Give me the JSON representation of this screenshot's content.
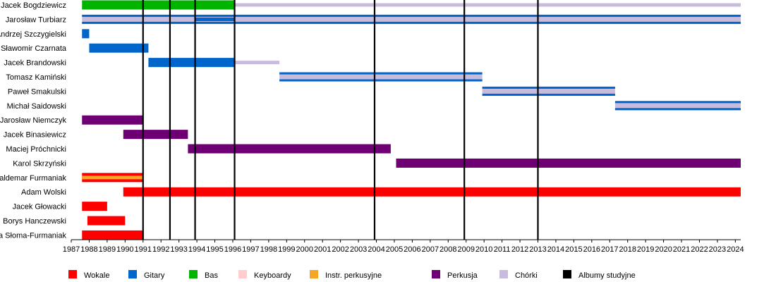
{
  "chart_data": {
    "type": "timeline",
    "xlim": [
      1987,
      2024.3
    ],
    "x_ticks": [
      "1987",
      "1988",
      "1989",
      "1990",
      "1991",
      "1992",
      "1993",
      "1994",
      "1995",
      "1996",
      "1997",
      "1998",
      "1999",
      "2000",
      "2001",
      "2002",
      "2003",
      "2004",
      "2005",
      "2006",
      "2007",
      "2008",
      "2009",
      "2010",
      "2011",
      "2012",
      "2013",
      "2014",
      "2015",
      "2016",
      "2017",
      "2018",
      "2019",
      "2020",
      "2021",
      "2022",
      "2023",
      "2024"
    ],
    "albums": [
      1991.0,
      1992.5,
      1993.9,
      1996.1,
      2003.9,
      2008.9,
      2013.0
    ],
    "members": [
      {
        "name": "Jacek Bogdziewicz",
        "role": "Bas",
        "start": 1987.6,
        "end": 1996.1,
        "secondary": "Chórki",
        "secondary_start": 1996.1,
        "secondary_end": 2024.3
      },
      {
        "name": "Jarosław Turbiarz",
        "role": "Chórki",
        "start": 1987.6,
        "end": 2024.3,
        "secondary": "Gitary",
        "secondary_start": 1993.9,
        "secondary_end": 1996.1
      },
      {
        "name": "Andrzej Szczygielski",
        "role": "Gitary",
        "start": 1987.6,
        "end": 1988.0
      },
      {
        "name": "Sławomir Czarnata",
        "role": "Gitary",
        "start": 1988.0,
        "end": 1991.3
      },
      {
        "name": "Jacek Brandowski",
        "role": "Gitary",
        "start": 1991.3,
        "end": 1996.1,
        "secondary": "Chórki",
        "secondary_start": 1996.1,
        "secondary_end": 1998.6
      },
      {
        "name": "Tomasz Kamiński",
        "role": "Chórki",
        "start": 1998.6,
        "end": 2009.9
      },
      {
        "name": "Paweł Smakulski",
        "role": "Chórki",
        "start": 2009.9,
        "end": 2017.3
      },
      {
        "name": "Michał Saidowski",
        "role": "Chórki",
        "start": 2017.3,
        "end": 2024.3
      },
      {
        "name": "Jarosław Niemczyk",
        "role": "Perkusja",
        "start": 1987.6,
        "end": 1991.0
      },
      {
        "name": "Jacek Binasiewicz",
        "role": "Perkusja",
        "start": 1989.9,
        "end": 1993.5
      },
      {
        "name": "Maciej Próchnicki",
        "role": "Perkusja",
        "start": 1993.5,
        "end": 2004.8
      },
      {
        "name": "Karol Skrzyński",
        "role": "Perkusja",
        "start": 2005.1,
        "end": 2024.3
      },
      {
        "name": "Waldemar Furmaniak",
        "role": "Wokale",
        "start": 1987.6,
        "end": 1991.0,
        "secondary": "Instr. perkusyjne",
        "secondary_start": 1987.6,
        "secondary_end": 1991.0
      },
      {
        "name": "Adam Wolski",
        "role": "Wokale",
        "start": 1989.9,
        "end": 2024.3
      },
      {
        "name": "Jacek Głowacki",
        "role": "Wokale",
        "start": 1987.6,
        "end": 1989.0
      },
      {
        "name": "Borys Hanczewski",
        "role": "Wokale",
        "start": 1987.9,
        "end": 1990.0
      },
      {
        "name": "Renata Słoma-Furmaniak",
        "role": "Wokale",
        "start": 1987.6,
        "end": 1991.0
      }
    ],
    "legend": [
      {
        "label": "Wokale",
        "color": "#ff0000"
      },
      {
        "label": "Gitary",
        "color": "#0066cc"
      },
      {
        "label": "Bas",
        "color": "#00b400"
      },
      {
        "label": "Keyboardy",
        "color": "#ffccd0"
      },
      {
        "label": "Instr. perkusyjne",
        "color": "#f5a623"
      },
      {
        "label": "Perkusja",
        "color": "#6e0073"
      },
      {
        "label": "Chórki",
        "color": "#c8bcdc"
      },
      {
        "label": "Albumy studyjne",
        "color": "#000000"
      }
    ]
  }
}
